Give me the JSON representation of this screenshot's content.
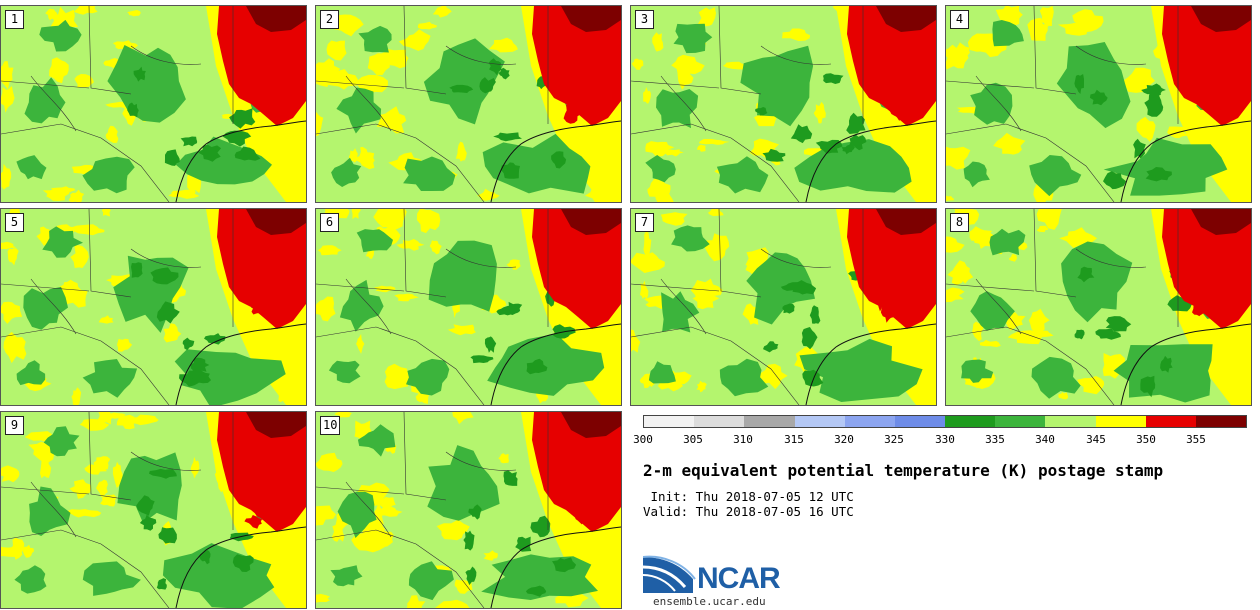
{
  "panels": [
    {
      "label": "1"
    },
    {
      "label": "2"
    },
    {
      "label": "3"
    },
    {
      "label": "4"
    },
    {
      "label": "5"
    },
    {
      "label": "6"
    },
    {
      "label": "7"
    },
    {
      "label": "8"
    },
    {
      "label": "9"
    },
    {
      "label": "10"
    }
  ],
  "colorbar": {
    "ticks": [
      "300",
      "305",
      "310",
      "315",
      "320",
      "325",
      "330",
      "335",
      "340",
      "345",
      "350",
      "355"
    ],
    "colors": [
      "#f2f2f2",
      "#dcdcdc",
      "#a8a8a8",
      "#b4c8f5",
      "#8ca5f0",
      "#6e8ce8",
      "#1e9b1e",
      "#3cb43c",
      "#b4f56e",
      "#ffff00",
      "#e60000",
      "#7d0000"
    ]
  },
  "title": "2-m equivalent potential temperature (K) postage stamp",
  "init": " Init: Thu 2018-07-05 12 UTC",
  "valid": "Valid: Thu 2018-07-05 16 UTC",
  "logo": {
    "name": "NCAR",
    "site": "ensemble.ucar.edu"
  }
}
